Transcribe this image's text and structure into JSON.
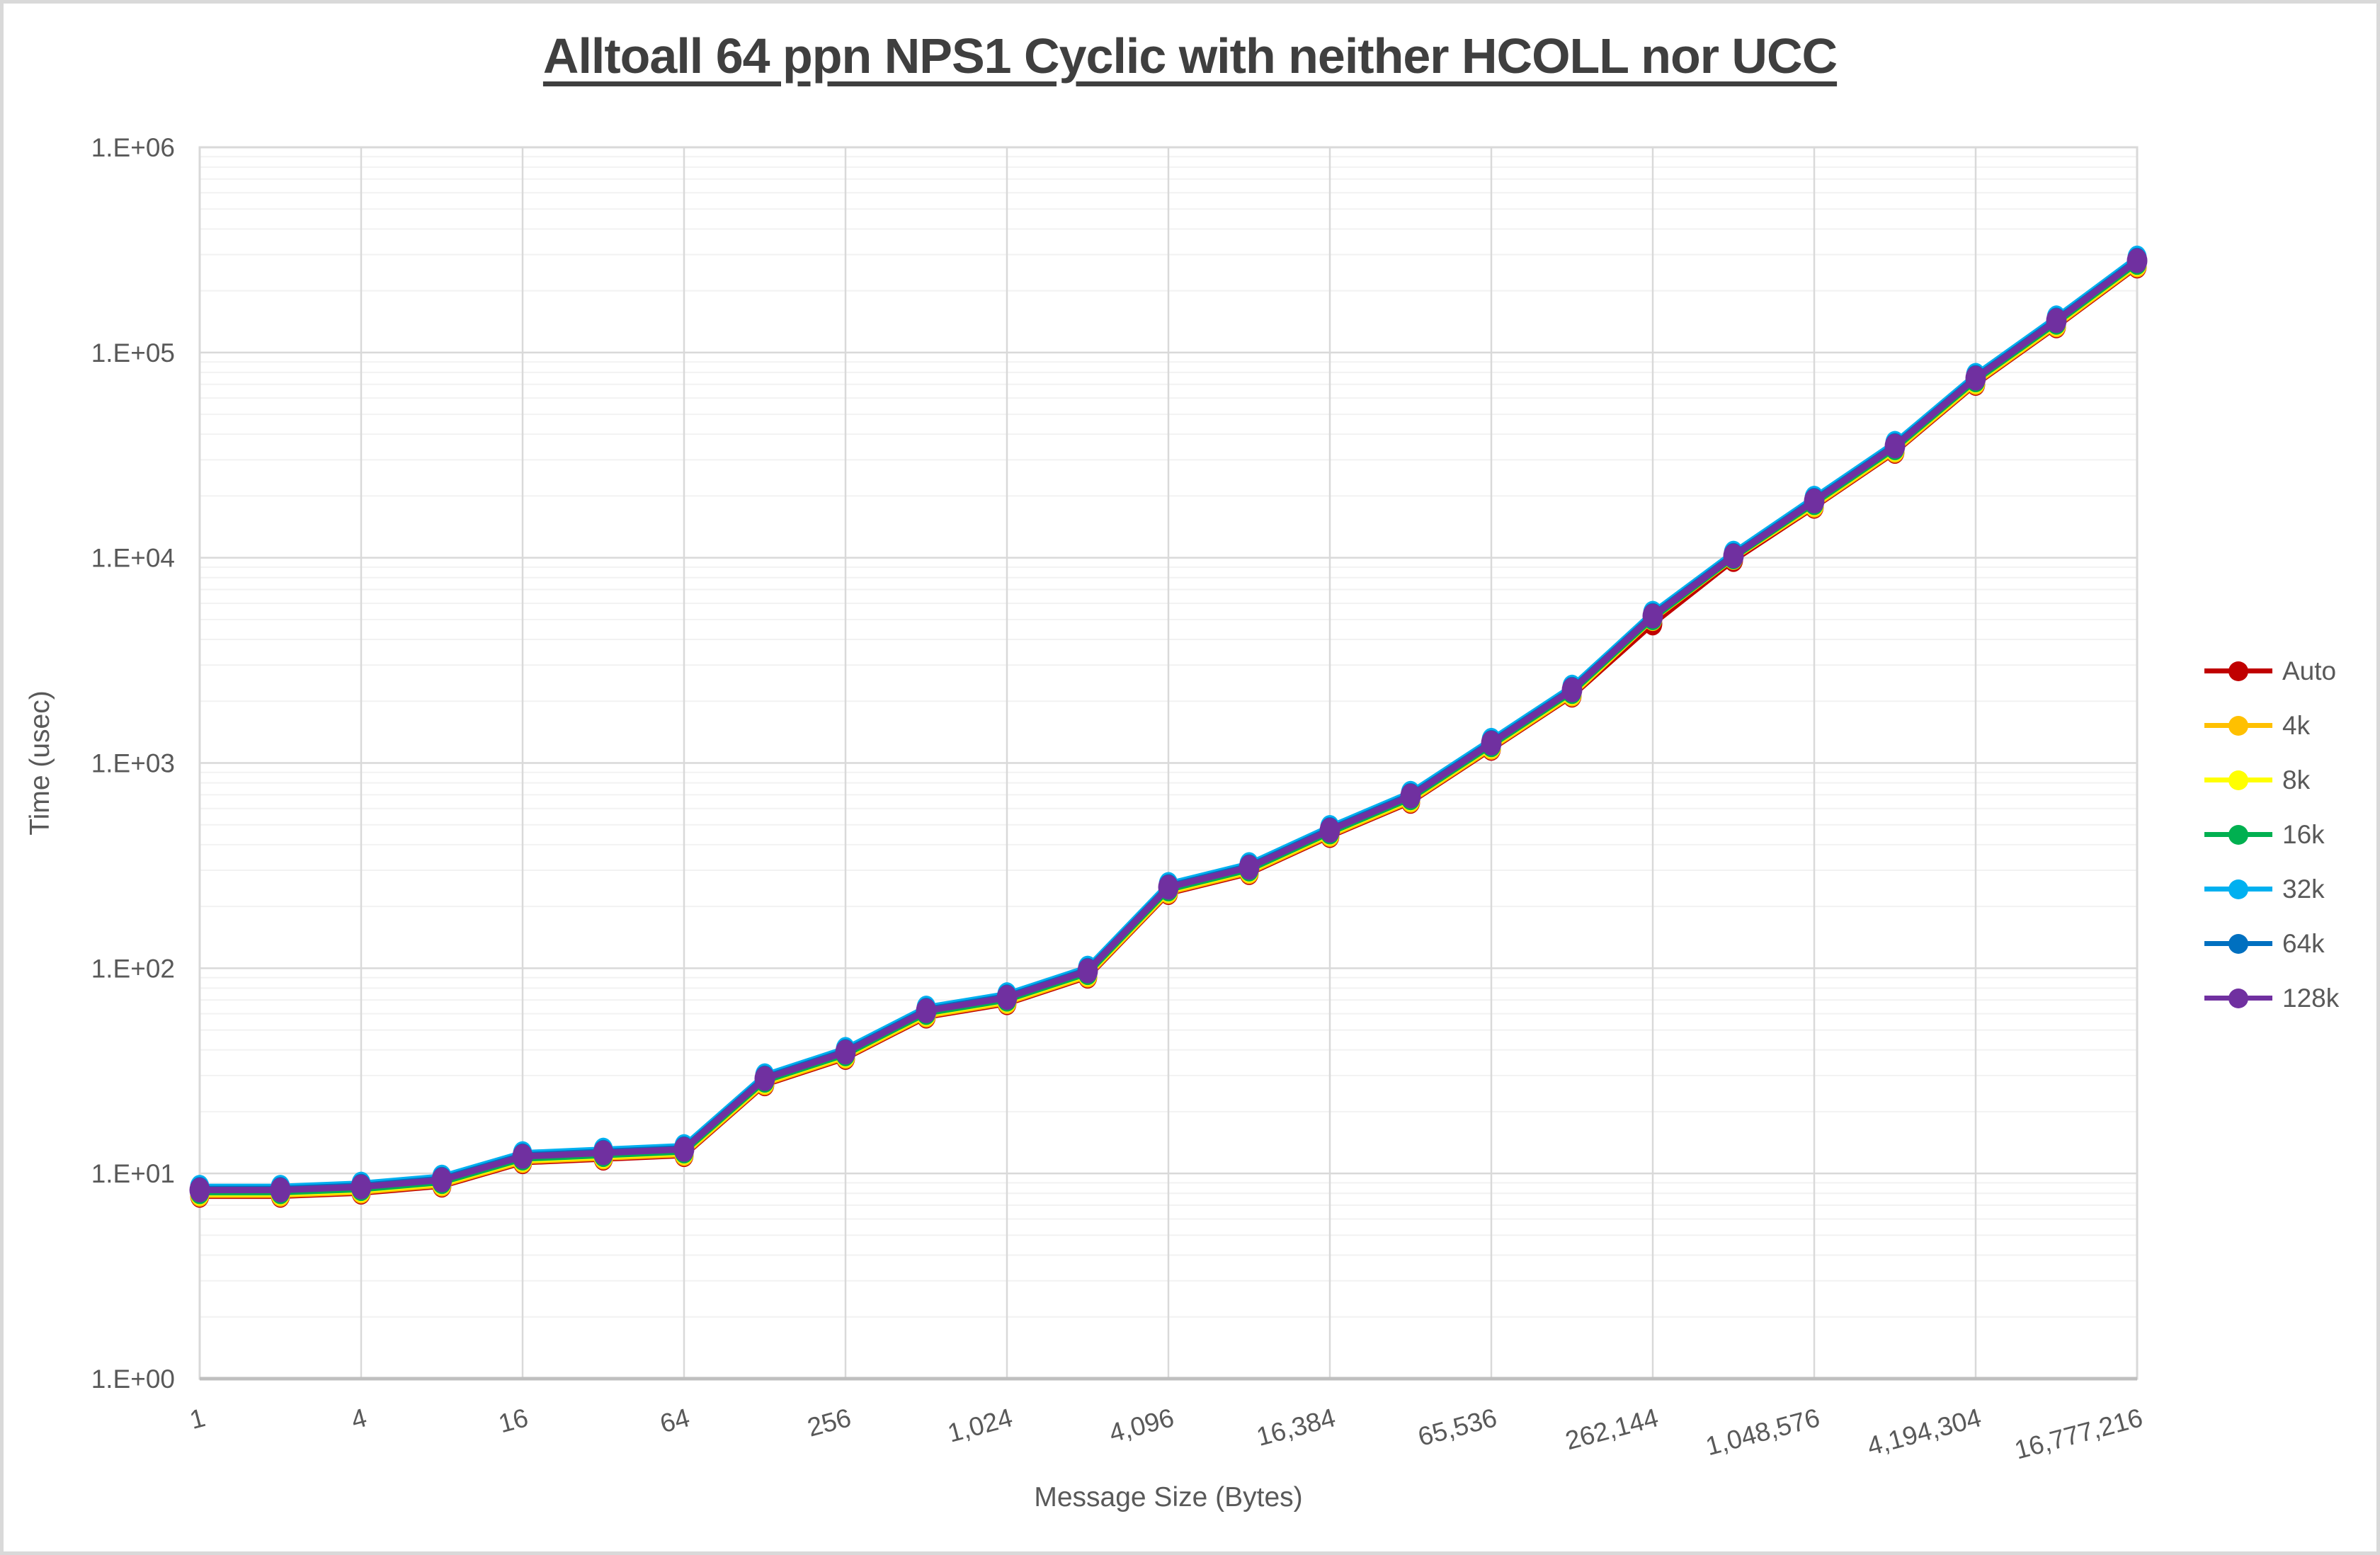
{
  "title": "Alltoall 64 ppn NPS1 Cyclic with neither HCOLL nor UCC",
  "style": {
    "background": "#FFFFFF",
    "outer_border": "#D9D9D9",
    "title_color": "#3F3F3F",
    "text_color": "#595959",
    "grid_major": "#D9D9D9",
    "grid_minor": "#F2F2F2",
    "axis_line": "#BFBFBF"
  },
  "chart_data": {
    "type": "line",
    "title": "Alltoall 64 ppn NPS1 Cyclic with neither HCOLL nor UCC",
    "xlabel": "Message Size (Bytes)",
    "ylabel": "Time (usec)",
    "x_scale": "log2",
    "y_scale": "log10",
    "ylim": [
      1,
      1000000
    ],
    "grid": "major-and-minor-horizontal, major-vertical",
    "legend_position": "right",
    "y_tick_labels": [
      "1.E+00",
      "1.E+01",
      "1.E+02",
      "1.E+03",
      "1.E+04",
      "1.E+05",
      "1.E+06"
    ],
    "x_tick_labels": [
      "1",
      "4",
      "16",
      "64",
      "256",
      "1,024",
      "4,096",
      "16,384",
      "65,536",
      "262,144",
      "1,048,576",
      "4,194,304",
      "16,777,216"
    ],
    "x": [
      1,
      2,
      4,
      8,
      16,
      32,
      64,
      128,
      256,
      512,
      1024,
      2048,
      4096,
      8192,
      16384,
      32768,
      65536,
      131072,
      262144,
      524288,
      1048576,
      2097152,
      4194304,
      8388608,
      16777216
    ],
    "series": [
      {
        "name": "Auto",
        "color": "#C00000",
        "values": [
          8.3,
          8.3,
          8.6,
          9.3,
          12.1,
          12.6,
          13.1,
          29,
          39,
          62,
          72,
          97,
          248,
          310,
          470,
          690,
          1250,
          2270,
          5100,
          10400,
          18900,
          35000,
          75000,
          143000,
          280000
        ]
      },
      {
        "name": "4k",
        "color": "#FFC000",
        "values": [
          8.3,
          8.3,
          8.6,
          9.3,
          12.1,
          12.6,
          13.1,
          29,
          39,
          62,
          72,
          97,
          248,
          310,
          470,
          690,
          1250,
          2270,
          5300,
          10500,
          18900,
          35000,
          75000,
          143000,
          280000
        ]
      },
      {
        "name": "8k",
        "color": "#FFFF00",
        "values": [
          8.3,
          8.3,
          8.6,
          9.3,
          12.1,
          12.6,
          13.1,
          29,
          39,
          62,
          72,
          97,
          248,
          310,
          470,
          690,
          1250,
          2270,
          5250,
          10400,
          18900,
          35000,
          75000,
          143000,
          280000
        ]
      },
      {
        "name": "16k",
        "color": "#00B050",
        "values": [
          8.3,
          8.3,
          8.6,
          9.3,
          12.1,
          12.6,
          13.1,
          29,
          39,
          62,
          72,
          97,
          248,
          310,
          470,
          690,
          1250,
          2270,
          5200,
          10300,
          18900,
          35000,
          75000,
          143000,
          280000
        ]
      },
      {
        "name": "32k",
        "color": "#00B0F0",
        "values": [
          8.3,
          8.3,
          8.6,
          9.3,
          12.1,
          12.6,
          13.1,
          29,
          39,
          62,
          72,
          97,
          248,
          310,
          470,
          690,
          1250,
          2270,
          5200,
          10200,
          18900,
          35000,
          75000,
          143000,
          280000
        ]
      },
      {
        "name": "64k",
        "color": "#0070C0",
        "values": [
          8.3,
          8.3,
          8.6,
          9.3,
          12.1,
          12.6,
          13.1,
          29,
          39,
          62,
          72,
          97,
          248,
          310,
          470,
          690,
          1250,
          2270,
          5200,
          10200,
          18900,
          35000,
          75000,
          143000,
          280000
        ]
      },
      {
        "name": "128k",
        "color": "#7030A0",
        "values": [
          8.3,
          8.3,
          8.6,
          9.3,
          12.1,
          12.6,
          13.1,
          29,
          39,
          62,
          72,
          97,
          248,
          310,
          470,
          690,
          1250,
          2270,
          5200,
          10200,
          18900,
          35000,
          75000,
          143000,
          280000
        ]
      }
    ]
  }
}
